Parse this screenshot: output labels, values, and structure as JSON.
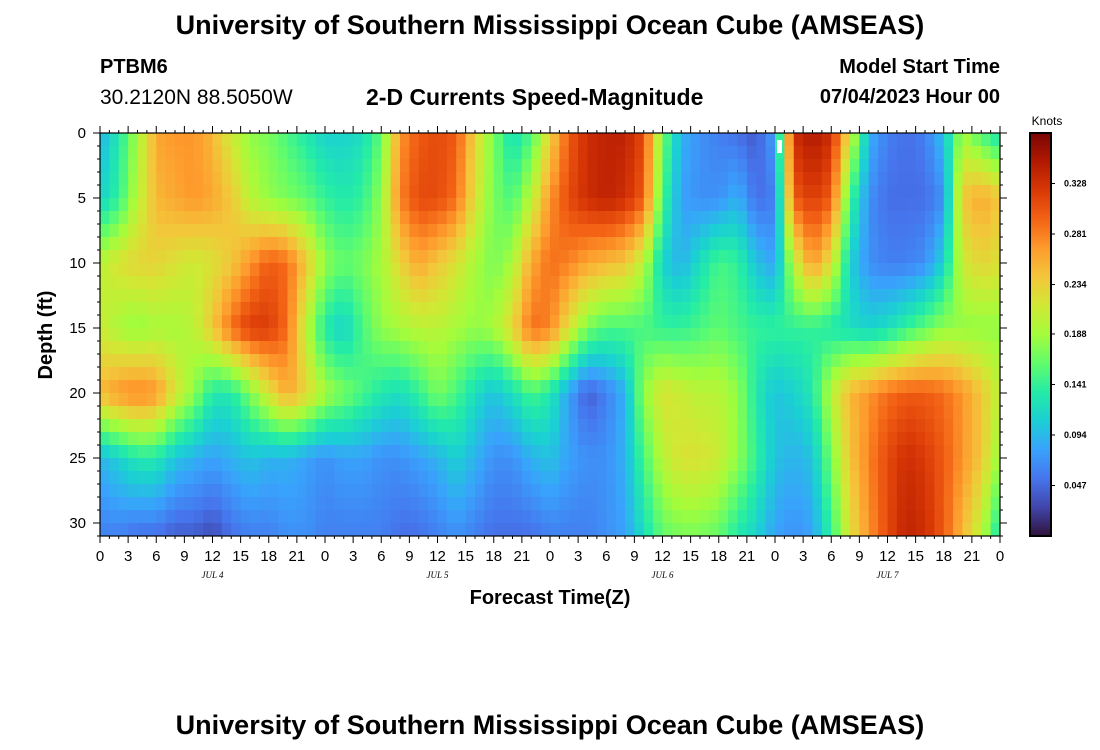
{
  "header": {
    "title_top": "University of Southern Mississippi Ocean Cube (AMSEAS)",
    "title_bottom": "University of Southern Mississippi Ocean Cube (AMSEAS)",
    "station": "PTBM6",
    "coords": "30.2120N  88.5050W",
    "subtitle": "2-D Currents Speed-Magnitude",
    "model_start_label": "Model Start Time",
    "model_start_value": "07/04/2023 Hour 00"
  },
  "chart_data": {
    "type": "heatmap",
    "title": "2-D Currents Speed-Magnitude",
    "xlabel": "Forecast Time(Z)",
    "ylabel": "Depth (ft)",
    "x_ticks": [
      "0",
      "3",
      "6",
      "9",
      "12",
      "15",
      "18",
      "21",
      "0",
      "3",
      "6",
      "9",
      "12",
      "15",
      "18",
      "21",
      "0",
      "3",
      "6",
      "9",
      "12",
      "15",
      "18",
      "21",
      "0",
      "3",
      "6",
      "9",
      "12",
      "15",
      "18",
      "21",
      "0"
    ],
    "x_range_hours": [
      0,
      96
    ],
    "day_labels": [
      {
        "label": "JUL 4",
        "hour": 12
      },
      {
        "label": "JUL 5",
        "hour": 36
      },
      {
        "label": "JUL 6",
        "hour": 60
      },
      {
        "label": "JUL 7",
        "hour": 84
      }
    ],
    "y_ticks": [
      "0",
      "5",
      "10",
      "15",
      "20",
      "25",
      "30"
    ],
    "y_range_ft": [
      0,
      31
    ],
    "colorbar": {
      "unit": "Knots",
      "ticks": [
        "0.328",
        "0.281",
        "0.234",
        "0.188",
        "0.141",
        "0.094",
        "0.047"
      ],
      "tick_values": [
        0.328,
        0.281,
        0.234,
        0.188,
        0.141,
        0.094,
        0.047
      ],
      "range": [
        0,
        0.375
      ],
      "colors": [
        "#30123b",
        "#4145ab",
        "#4675ed",
        "#39a2fc",
        "#1bcfd4",
        "#24eca6",
        "#61fc6c",
        "#a4fc3b",
        "#d1e834",
        "#f3c63a",
        "#fe9b2d",
        "#f36315",
        "#d93806",
        "#b11901",
        "#7a0402"
      ]
    },
    "grid": {
      "times": [
        0,
        2,
        4,
        6,
        8,
        10,
        12,
        14,
        16,
        18,
        20,
        22,
        24,
        26,
        28,
        30,
        32,
        34,
        36,
        38,
        40,
        42,
        44,
        46,
        48,
        50,
        52,
        54,
        56,
        58,
        60,
        62,
        64,
        66,
        68,
        70,
        72,
        74,
        76,
        78,
        80,
        82,
        84,
        86,
        88,
        90,
        92,
        94,
        96
      ],
      "depths": [
        0,
        5,
        10,
        15,
        20,
        25,
        31
      ],
      "values": [
        [
          0.09,
          0.13,
          0.19,
          0.26,
          0.27,
          0.27,
          0.25,
          0.21,
          0.18,
          0.17,
          0.15,
          0.13,
          0.11,
          0.11,
          0.12,
          0.16,
          0.27,
          0.3,
          0.31,
          0.3,
          0.23,
          0.17,
          0.12,
          0.15,
          0.23,
          0.3,
          0.33,
          0.34,
          0.34,
          0.31,
          0.17,
          0.09,
          0.07,
          0.06,
          0.05,
          0.04,
          0.08,
          0.33,
          0.35,
          0.33,
          0.22,
          0.09,
          0.06,
          0.05,
          0.06,
          0.1,
          0.19,
          0.15,
          0.12
        ],
        [
          0.11,
          0.14,
          0.2,
          0.25,
          0.26,
          0.27,
          0.26,
          0.24,
          0.2,
          0.18,
          0.17,
          0.16,
          0.14,
          0.13,
          0.14,
          0.18,
          0.28,
          0.31,
          0.31,
          0.29,
          0.22,
          0.17,
          0.15,
          0.2,
          0.27,
          0.31,
          0.33,
          0.34,
          0.33,
          0.3,
          0.15,
          0.08,
          0.07,
          0.07,
          0.09,
          0.05,
          0.06,
          0.3,
          0.32,
          0.3,
          0.15,
          0.07,
          0.05,
          0.05,
          0.05,
          0.07,
          0.24,
          0.26,
          0.24
        ],
        [
          0.2,
          0.22,
          0.23,
          0.23,
          0.22,
          0.21,
          0.22,
          0.24,
          0.27,
          0.3,
          0.29,
          0.24,
          0.18,
          0.16,
          0.17,
          0.19,
          0.23,
          0.26,
          0.24,
          0.22,
          0.19,
          0.17,
          0.19,
          0.26,
          0.29,
          0.28,
          0.26,
          0.25,
          0.24,
          0.2,
          0.11,
          0.09,
          0.12,
          0.15,
          0.14,
          0.1,
          0.08,
          0.2,
          0.27,
          0.22,
          0.11,
          0.07,
          0.06,
          0.06,
          0.07,
          0.11,
          0.21,
          0.23,
          0.22
        ],
        [
          0.21,
          0.19,
          0.18,
          0.19,
          0.19,
          0.2,
          0.24,
          0.29,
          0.32,
          0.32,
          0.29,
          0.2,
          0.13,
          0.11,
          0.15,
          0.18,
          0.19,
          0.2,
          0.2,
          0.19,
          0.18,
          0.19,
          0.23,
          0.29,
          0.28,
          0.22,
          0.17,
          0.15,
          0.15,
          0.15,
          0.14,
          0.14,
          0.15,
          0.16,
          0.15,
          0.14,
          0.14,
          0.14,
          0.14,
          0.13,
          0.12,
          0.11,
          0.12,
          0.14,
          0.16,
          0.18,
          0.18,
          0.18,
          0.18
        ],
        [
          0.25,
          0.27,
          0.28,
          0.27,
          0.22,
          0.18,
          0.13,
          0.13,
          0.17,
          0.22,
          0.26,
          0.23,
          0.19,
          0.17,
          0.15,
          0.13,
          0.12,
          0.14,
          0.17,
          0.15,
          0.12,
          0.1,
          0.12,
          0.15,
          0.13,
          0.08,
          0.04,
          0.06,
          0.09,
          0.18,
          0.22,
          0.21,
          0.2,
          0.2,
          0.18,
          0.13,
          0.1,
          0.11,
          0.13,
          0.2,
          0.25,
          0.27,
          0.29,
          0.3,
          0.3,
          0.29,
          0.27,
          0.24,
          0.2
        ],
        [
          0.09,
          0.11,
          0.13,
          0.13,
          0.1,
          0.09,
          0.08,
          0.09,
          0.1,
          0.09,
          0.09,
          0.08,
          0.07,
          0.08,
          0.08,
          0.07,
          0.07,
          0.08,
          0.09,
          0.11,
          0.09,
          0.07,
          0.07,
          0.09,
          0.1,
          0.08,
          0.07,
          0.07,
          0.09,
          0.15,
          0.2,
          0.22,
          0.22,
          0.21,
          0.18,
          0.14,
          0.1,
          0.09,
          0.1,
          0.17,
          0.24,
          0.28,
          0.31,
          0.33,
          0.32,
          0.3,
          0.27,
          0.24,
          0.18
        ],
        [
          0.06,
          0.06,
          0.05,
          0.05,
          0.04,
          0.04,
          0.03,
          0.05,
          0.06,
          0.06,
          0.07,
          0.07,
          0.06,
          0.06,
          0.06,
          0.06,
          0.05,
          0.05,
          0.06,
          0.07,
          0.06,
          0.05,
          0.05,
          0.05,
          0.06,
          0.06,
          0.06,
          0.07,
          0.08,
          0.12,
          0.16,
          0.17,
          0.17,
          0.16,
          0.13,
          0.11,
          0.08,
          0.07,
          0.08,
          0.14,
          0.22,
          0.27,
          0.31,
          0.34,
          0.33,
          0.3,
          0.25,
          0.2,
          0.12
        ]
      ]
    }
  }
}
